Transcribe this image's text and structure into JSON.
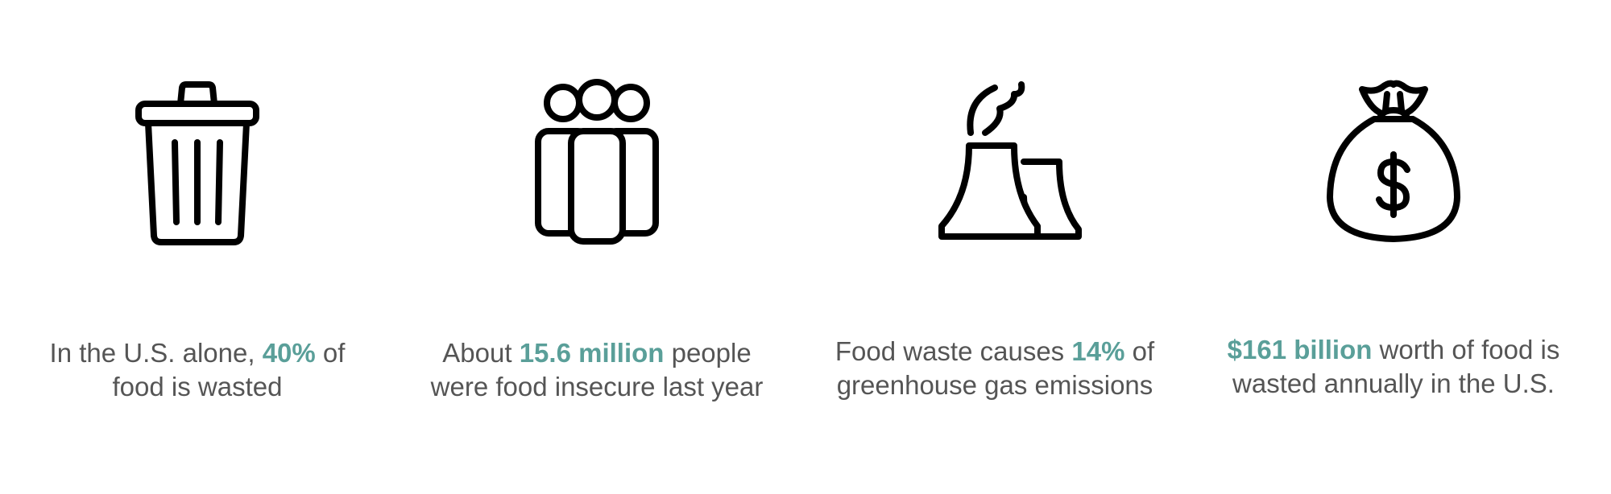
{
  "stats": [
    {
      "icon": "trash-can-icon",
      "pre": "In the U.S. alone, ",
      "highlight": "40%",
      "post": " of food is wasted"
    },
    {
      "icon": "people-group-icon",
      "pre": "About ",
      "highlight": "15.6 million",
      "post": " people were food insecure last year"
    },
    {
      "icon": "factory-emissions-icon",
      "pre": "Food waste causes ",
      "highlight": "14%",
      "post": " of greenhouse gas emissions"
    },
    {
      "icon": "money-bag-icon",
      "pre": "",
      "highlight": "$161 billion",
      "post": " worth of food is wasted annually in the U.S."
    }
  ],
  "colors": {
    "highlight": "#5a9f99",
    "text": "#555555",
    "icon": "#000000"
  }
}
